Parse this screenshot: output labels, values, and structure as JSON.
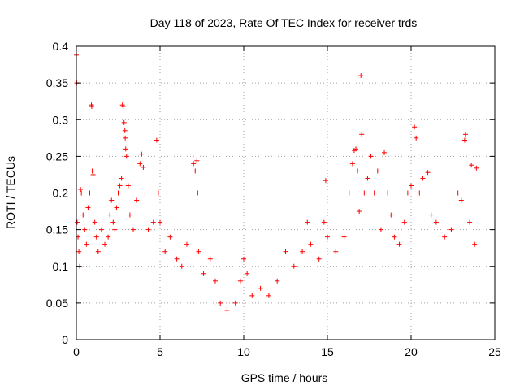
{
  "chart_data": {
    "type": "scatter",
    "title": "Day 118 of 2023, Rate Of TEC Index for receiver trds",
    "xlabel": "GPS time / hours",
    "ylabel": "ROTI / TECUs",
    "xlim": [
      0,
      25
    ],
    "ylim": [
      0,
      0.4
    ],
    "x_ticks": [
      "0",
      "5",
      "10",
      "15",
      "20",
      "25"
    ],
    "y_ticks": [
      "0",
      "0.05",
      "0.1",
      "0.15",
      "0.2",
      "0.25",
      "0.3",
      "0.35",
      "0.4"
    ],
    "grid": true,
    "marker": "plus",
    "colors": {
      "series": "#ff0000"
    },
    "series": [
      {
        "points": [
          [
            0.0,
            0.388
          ],
          [
            0.02,
            0.35
          ],
          [
            0.05,
            0.16
          ],
          [
            0.1,
            0.14
          ],
          [
            0.15,
            0.12
          ],
          [
            0.2,
            0.1
          ],
          [
            0.25,
            0.205
          ],
          [
            0.3,
            0.2
          ],
          [
            0.4,
            0.17
          ],
          [
            0.5,
            0.15
          ],
          [
            0.6,
            0.13
          ],
          [
            0.7,
            0.18
          ],
          [
            0.8,
            0.2
          ],
          [
            0.9,
            0.32
          ],
          [
            0.92,
            0.318
          ],
          [
            0.95,
            0.23
          ],
          [
            1.0,
            0.225
          ],
          [
            1.1,
            0.16
          ],
          [
            1.2,
            0.14
          ],
          [
            1.3,
            0.12
          ],
          [
            1.5,
            0.15
          ],
          [
            1.7,
            0.13
          ],
          [
            1.9,
            0.14
          ],
          [
            2.0,
            0.17
          ],
          [
            2.1,
            0.19
          ],
          [
            2.2,
            0.16
          ],
          [
            2.3,
            0.15
          ],
          [
            2.4,
            0.18
          ],
          [
            2.5,
            0.2
          ],
          [
            2.6,
            0.21
          ],
          [
            2.7,
            0.22
          ],
          [
            2.75,
            0.32
          ],
          [
            2.8,
            0.318
          ],
          [
            2.85,
            0.296
          ],
          [
            2.9,
            0.285
          ],
          [
            2.92,
            0.275
          ],
          [
            2.95,
            0.26
          ],
          [
            3.0,
            0.25
          ],
          [
            3.1,
            0.21
          ],
          [
            3.2,
            0.17
          ],
          [
            3.4,
            0.15
          ],
          [
            3.6,
            0.19
          ],
          [
            3.8,
            0.24
          ],
          [
            3.9,
            0.253
          ],
          [
            4.0,
            0.235
          ],
          [
            4.1,
            0.2
          ],
          [
            4.3,
            0.15
          ],
          [
            4.6,
            0.16
          ],
          [
            4.8,
            0.272
          ],
          [
            4.9,
            0.2
          ],
          [
            5.0,
            0.16
          ],
          [
            5.3,
            0.12
          ],
          [
            5.6,
            0.14
          ],
          [
            6.0,
            0.11
          ],
          [
            6.3,
            0.1
          ],
          [
            6.6,
            0.13
          ],
          [
            7.0,
            0.24
          ],
          [
            7.1,
            0.23
          ],
          [
            7.2,
            0.244
          ],
          [
            7.25,
            0.2
          ],
          [
            7.3,
            0.12
          ],
          [
            7.6,
            0.09
          ],
          [
            8.0,
            0.11
          ],
          [
            8.3,
            0.08
          ],
          [
            8.6,
            0.05
          ],
          [
            9.0,
            0.04
          ],
          [
            9.5,
            0.05
          ],
          [
            9.8,
            0.08
          ],
          [
            10.0,
            0.11
          ],
          [
            10.2,
            0.09
          ],
          [
            10.5,
            0.06
          ],
          [
            11.0,
            0.07
          ],
          [
            11.5,
            0.06
          ],
          [
            12.0,
            0.08
          ],
          [
            12.5,
            0.12
          ],
          [
            13.0,
            0.1
          ],
          [
            13.5,
            0.12
          ],
          [
            13.8,
            0.16
          ],
          [
            14.0,
            0.13
          ],
          [
            14.5,
            0.11
          ],
          [
            14.8,
            0.16
          ],
          [
            14.9,
            0.217
          ],
          [
            15.0,
            0.14
          ],
          [
            15.5,
            0.12
          ],
          [
            16.0,
            0.14
          ],
          [
            16.3,
            0.2
          ],
          [
            16.5,
            0.24
          ],
          [
            16.6,
            0.258
          ],
          [
            16.7,
            0.26
          ],
          [
            16.8,
            0.23
          ],
          [
            16.9,
            0.175
          ],
          [
            17.0,
            0.36
          ],
          [
            17.05,
            0.28
          ],
          [
            17.2,
            0.2
          ],
          [
            17.4,
            0.22
          ],
          [
            17.6,
            0.25
          ],
          [
            17.8,
            0.2
          ],
          [
            18.0,
            0.23
          ],
          [
            18.2,
            0.15
          ],
          [
            18.4,
            0.255
          ],
          [
            18.6,
            0.2
          ],
          [
            18.8,
            0.17
          ],
          [
            19.0,
            0.14
          ],
          [
            19.3,
            0.13
          ],
          [
            19.6,
            0.16
          ],
          [
            19.8,
            0.2
          ],
          [
            20.0,
            0.21
          ],
          [
            20.2,
            0.29
          ],
          [
            20.3,
            0.275
          ],
          [
            20.5,
            0.2
          ],
          [
            20.7,
            0.22
          ],
          [
            21.0,
            0.228
          ],
          [
            21.2,
            0.17
          ],
          [
            21.5,
            0.16
          ],
          [
            22.0,
            0.14
          ],
          [
            22.4,
            0.15
          ],
          [
            22.8,
            0.2
          ],
          [
            23.0,
            0.19
          ],
          [
            23.2,
            0.272
          ],
          [
            23.25,
            0.28
          ],
          [
            23.5,
            0.16
          ],
          [
            23.6,
            0.238
          ],
          [
            23.8,
            0.13
          ],
          [
            23.9,
            0.234
          ]
        ]
      }
    ]
  }
}
